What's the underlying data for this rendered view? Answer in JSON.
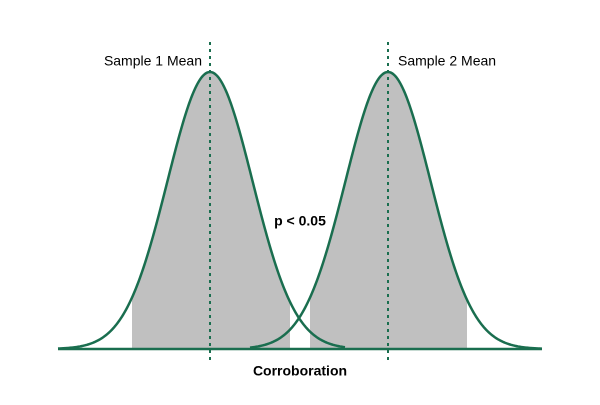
{
  "labels": {
    "mean_1": "Sample 1 Mean",
    "mean_2": "Sample 2 Mean",
    "significance": "p < 0.05",
    "axis": "Corroboration"
  }
}
